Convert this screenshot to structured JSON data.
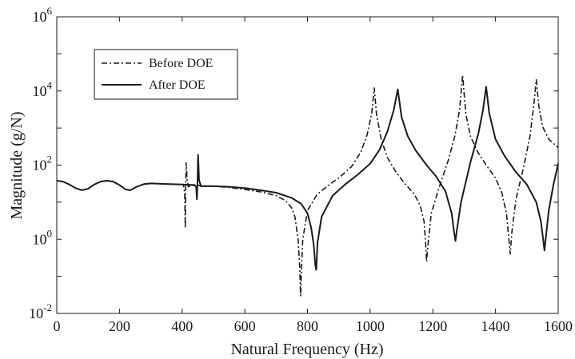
{
  "chart_data": {
    "type": "line",
    "title": "",
    "xlabel": "Natural Frequency (Hz)",
    "ylabel": "Magnitude (g/N)",
    "xlim": [
      0,
      1600
    ],
    "ylim_log10": [
      -2,
      6
    ],
    "yscale": "log",
    "x_ticks": [
      "0",
      "200",
      "400",
      "600",
      "800",
      "1000",
      "1200",
      "1400",
      "1600"
    ],
    "y_ticks": [
      {
        "base": "10",
        "exp": "-2"
      },
      {
        "base": "10",
        "exp": "0"
      },
      {
        "base": "10",
        "exp": "2"
      },
      {
        "base": "10",
        "exp": "4"
      },
      {
        "base": "10",
        "exp": "6"
      }
    ],
    "grid": false,
    "legend_position": "top-left",
    "series": [
      {
        "name": "Before DOE",
        "style": "dashdot",
        "color": "#1a1a1a",
        "points": [
          [
            0,
            38
          ],
          [
            20,
            36
          ],
          [
            40,
            30
          ],
          [
            60,
            24
          ],
          [
            80,
            21
          ],
          [
            100,
            23
          ],
          [
            120,
            30
          ],
          [
            140,
            36
          ],
          [
            160,
            38
          ],
          [
            180,
            36
          ],
          [
            200,
            29
          ],
          [
            220,
            22
          ],
          [
            235,
            21
          ],
          [
            255,
            26
          ],
          [
            280,
            31
          ],
          [
            300,
            32
          ],
          [
            350,
            31
          ],
          [
            395,
            30
          ],
          [
            404,
            30
          ],
          [
            408,
            18
          ],
          [
            410,
            2
          ],
          [
            411,
            22
          ],
          [
            413,
            115
          ],
          [
            416,
            40
          ],
          [
            420,
            26
          ],
          [
            430,
            28
          ],
          [
            460,
            28
          ],
          [
            500,
            27
          ],
          [
            550,
            25
          ],
          [
            600,
            22
          ],
          [
            650,
            19
          ],
          [
            700,
            15
          ],
          [
            730,
            11
          ],
          [
            750,
            7
          ],
          [
            760,
            4
          ],
          [
            770,
            1
          ],
          [
            775,
            0.2
          ],
          [
            778,
            0.03
          ],
          [
            781,
            0.2
          ],
          [
            785,
            1
          ],
          [
            800,
            6
          ],
          [
            830,
            16
          ],
          [
            870,
            30
          ],
          [
            900,
            45
          ],
          [
            940,
            90
          ],
          [
            970,
            220
          ],
          [
            990,
            650
          ],
          [
            1005,
            2500
          ],
          [
            1013,
            12000
          ],
          [
            1020,
            2500
          ],
          [
            1035,
            500
          ],
          [
            1055,
            160
          ],
          [
            1080,
            70
          ],
          [
            1110,
            32
          ],
          [
            1140,
            17
          ],
          [
            1160,
            8
          ],
          [
            1172,
            3
          ],
          [
            1177,
            0.8
          ],
          [
            1180,
            0.25
          ],
          [
            1185,
            0.8
          ],
          [
            1195,
            5
          ],
          [
            1220,
            25
          ],
          [
            1250,
            140
          ],
          [
            1270,
            600
          ],
          [
            1285,
            3000
          ],
          [
            1295,
            27000
          ],
          [
            1305,
            2500
          ],
          [
            1320,
            600
          ],
          [
            1345,
            210
          ],
          [
            1370,
            100
          ],
          [
            1400,
            45
          ],
          [
            1420,
            18
          ],
          [
            1435,
            5
          ],
          [
            1443,
            0.9
          ],
          [
            1447,
            0.4
          ],
          [
            1452,
            1.5
          ],
          [
            1465,
            12
          ],
          [
            1490,
            90
          ],
          [
            1510,
            600
          ],
          [
            1522,
            4000
          ],
          [
            1530,
            20000
          ],
          [
            1538,
            4000
          ],
          [
            1550,
            1100
          ],
          [
            1570,
            500
          ],
          [
            1590,
            350
          ],
          [
            1600,
            300
          ]
        ]
      },
      {
        "name": "After DOE",
        "style": "solid",
        "color": "#1a1a1a",
        "points": [
          [
            0,
            38
          ],
          [
            20,
            36
          ],
          [
            40,
            30
          ],
          [
            60,
            24
          ],
          [
            80,
            21
          ],
          [
            100,
            23
          ],
          [
            120,
            30
          ],
          [
            140,
            36
          ],
          [
            160,
            38
          ],
          [
            180,
            36
          ],
          [
            200,
            29
          ],
          [
            220,
            22
          ],
          [
            235,
            21
          ],
          [
            255,
            26
          ],
          [
            280,
            31
          ],
          [
            300,
            32
          ],
          [
            350,
            31
          ],
          [
            400,
            30
          ],
          [
            440,
            29
          ],
          [
            445,
            25
          ],
          [
            447,
            12
          ],
          [
            449,
            35
          ],
          [
            451,
            190
          ],
          [
            454,
            40
          ],
          [
            460,
            27
          ],
          [
            500,
            27
          ],
          [
            550,
            26
          ],
          [
            600,
            24
          ],
          [
            650,
            21
          ],
          [
            700,
            18
          ],
          [
            750,
            13
          ],
          [
            780,
            9
          ],
          [
            800,
            5
          ],
          [
            812,
            2
          ],
          [
            820,
            0.7
          ],
          [
            825,
            0.2
          ],
          [
            828,
            0.15
          ],
          [
            832,
            0.8
          ],
          [
            845,
            4
          ],
          [
            880,
            15
          ],
          [
            920,
            30
          ],
          [
            960,
            55
          ],
          [
            1000,
            110
          ],
          [
            1030,
            260
          ],
          [
            1055,
            800
          ],
          [
            1075,
            3000
          ],
          [
            1088,
            11000
          ],
          [
            1100,
            2000
          ],
          [
            1120,
            600
          ],
          [
            1145,
            250
          ],
          [
            1180,
            100
          ],
          [
            1210,
            50
          ],
          [
            1240,
            20
          ],
          [
            1260,
            5
          ],
          [
            1268,
            1.5
          ],
          [
            1272,
            0.9
          ],
          [
            1276,
            1.6
          ],
          [
            1290,
            10
          ],
          [
            1320,
            120
          ],
          [
            1345,
            700
          ],
          [
            1360,
            3000
          ],
          [
            1370,
            13000
          ],
          [
            1380,
            2500
          ],
          [
            1400,
            500
          ],
          [
            1430,
            170
          ],
          [
            1465,
            65
          ],
          [
            1500,
            30
          ],
          [
            1530,
            10
          ],
          [
            1545,
            3
          ],
          [
            1552,
            1
          ],
          [
            1556,
            0.5
          ],
          [
            1560,
            1
          ],
          [
            1570,
            6
          ],
          [
            1585,
            30
          ],
          [
            1600,
            110
          ]
        ]
      }
    ]
  }
}
